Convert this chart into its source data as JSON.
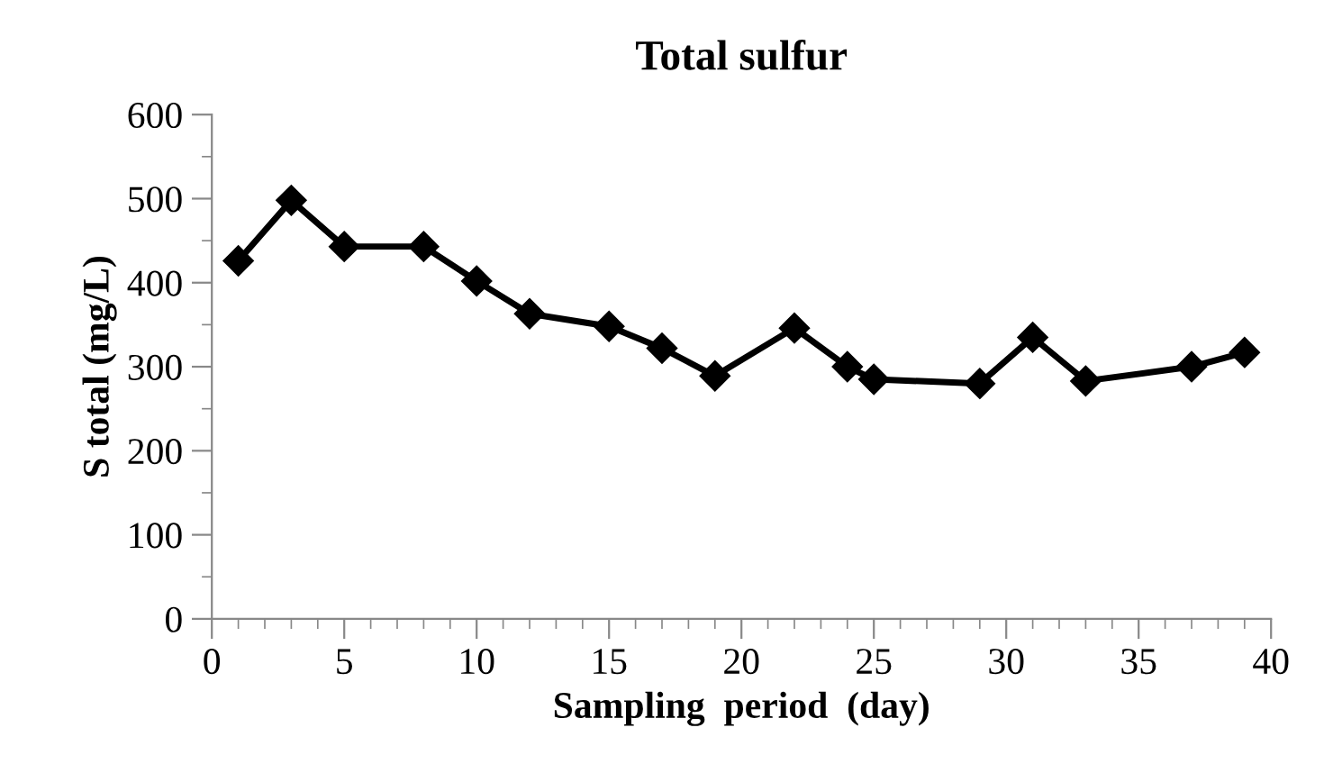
{
  "chart_data": {
    "type": "line",
    "title": "Total sulfur",
    "xlabel": "Sampling  period  (day)",
    "ylabel": "S total (mg/L)",
    "series": [
      {
        "color": "#000000",
        "x": [
          1,
          3,
          5,
          8,
          10,
          12,
          15,
          17,
          19,
          22,
          24,
          25,
          29,
          31,
          33,
          37,
          39
        ],
        "values": [
          426,
          498,
          443,
          443,
          402,
          363,
          348,
          322,
          289,
          346,
          300,
          285,
          280,
          335,
          283,
          300,
          317
        ]
      }
    ],
    "xlim": [
      0,
      40
    ],
    "xticks": [
      0,
      5,
      10,
      15,
      20,
      25,
      30,
      35,
      40
    ],
    "ylim": [
      0,
      600
    ],
    "yticks": [
      0,
      100,
      200,
      300,
      400,
      500,
      600
    ],
    "marker": "diamond",
    "line_style": "solid",
    "grid": false,
    "legend": false
  }
}
